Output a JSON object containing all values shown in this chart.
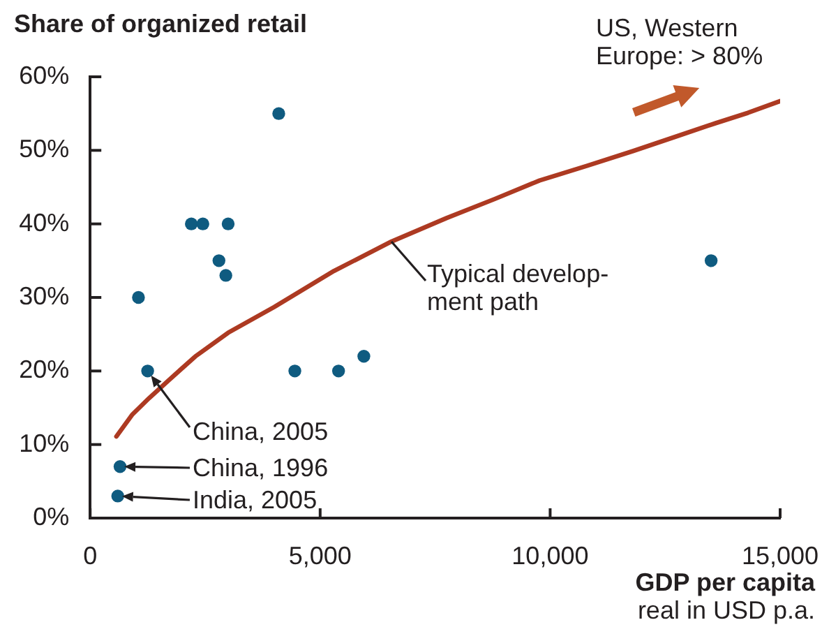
{
  "chart_data": {
    "type": "scatter",
    "ylabel": "Share of organized retail",
    "xlabel": "GDP per capita",
    "annotations": [
      "US, Western\nEurope: > 80%",
      {
        "text": "Typical develop-\nment path",
        "x": 6550,
        "y": 37.6
      },
      {
        "text": "China, 2005",
        "x": 1250,
        "y": 20
      },
      {
        "text": "China, 1996",
        "x": 650,
        "y": 7
      },
      {
        "text": "India, 2005",
        "x": 600,
        "y": 3
      },
      "real in USD p.a."
    ],
    "series": [
      {
        "type": "scatter",
        "color": "#0f5b80",
        "x": [
          4100,
          2200,
          2450,
          3000,
          2800,
          2950,
          1050,
          1250,
          4450,
          5400,
          5950,
          650,
          600,
          13500
        ],
        "values": [
          55,
          40,
          40,
          40,
          35,
          33,
          30,
          20,
          20,
          20,
          22,
          7,
          3,
          35
        ]
      },
      {
        "type": "line",
        "color": "#ad3a22",
        "marker": "none",
        "x": [
          570,
          920,
          1280,
          1700,
          2290,
          3000,
          4000,
          5300,
          6550,
          7750,
          8800,
          9770,
          10800,
          11800,
          12700,
          13600,
          14300,
          15000
        ],
        "values": [
          11.1,
          14.1,
          16.3,
          18.7,
          22,
          25.2,
          28.7,
          33.6,
          37.6,
          40.8,
          43.4,
          45.9,
          47.9,
          49.9,
          51.8,
          53.7,
          55.1,
          56.7
        ]
      }
    ],
    "xlim": [
      0,
      15000
    ],
    "xticks": [
      0,
      {
        "value": 5000,
        "label": "5,000"
      },
      {
        "value": 10000,
        "label": "10,000"
      },
      {
        "value": 15000,
        "label": "15,000"
      }
    ],
    "ylim": [
      0,
      60
    ],
    "yticks": [
      {
        "value": 0,
        "label": "0%"
      },
      {
        "value": 10,
        "label": "10%"
      },
      {
        "value": 20,
        "label": "20%"
      },
      {
        "value": 30,
        "label": "30%"
      },
      {
        "value": 40,
        "label": "40%"
      },
      {
        "value": 50,
        "label": "50%"
      },
      {
        "value": 60,
        "label": "60%"
      }
    ],
    "marker": "circle"
  }
}
